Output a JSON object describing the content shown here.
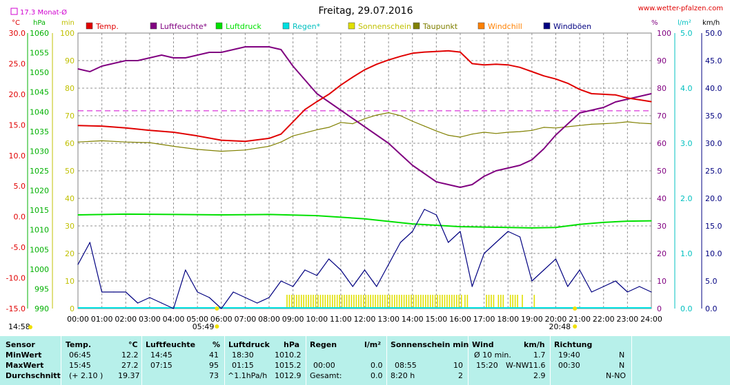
{
  "header": {
    "title": "Freitag, 29.07.2016",
    "site": "www.wetter-pfalzen.com",
    "month_avg": "17.3 Monat-Ø",
    "unit_temp": "°C",
    "unit_hpa": "hPa",
    "unit_min": "min",
    "unit_pct": "%",
    "unit_rain": "l/m²",
    "unit_kmh": "km/h"
  },
  "legend": [
    {
      "label": "Temp.",
      "color": "#e00000"
    },
    {
      "label": "Luftfeuchte*",
      "color": "#800080"
    },
    {
      "label": "Luftdruck",
      "color": "#00e000"
    },
    {
      "label": "Regen*",
      "color": "#00e0e0"
    },
    {
      "label": "Sonnenschein",
      "color": "#e0e000"
    },
    {
      "label": "Taupunkt",
      "color": "#808000"
    },
    {
      "label": "Windchill",
      "color": "#ff8000"
    },
    {
      "label": "Windböen",
      "color": "#000080"
    }
  ],
  "sun": {
    "sunrise_label": "05:49",
    "sunset_label": "20:48",
    "left_time": "14:58"
  },
  "chart_data": {
    "type": "line",
    "xlabel": "",
    "x_ticks": [
      "00:00",
      "01:00",
      "02:00",
      "03:00",
      "04:00",
      "05:00",
      "06:00",
      "07:00",
      "08:00",
      "09:00",
      "10:00",
      "11:00",
      "12:00",
      "13:00",
      "14:00",
      "15:00",
      "16:00",
      "17:00",
      "18:00",
      "19:00",
      "20:00",
      "21:00",
      "22:00",
      "23:00",
      "24:00"
    ],
    "axes": {
      "temp": {
        "ticks": [
          "30.0",
          "25.0",
          "20.0",
          "15.0",
          "10.0",
          "5.0",
          "0.0",
          "-5.0",
          "-10.0",
          "-15.0"
        ],
        "range": [
          -15,
          30
        ]
      },
      "hpa": {
        "ticks": [
          "1060",
          "1055",
          "1050",
          "1045",
          "1040",
          "1035",
          "1030",
          "1025",
          "1020",
          "1015",
          "1010",
          "1005",
          "1000",
          "995",
          "990"
        ],
        "range": [
          990,
          1060
        ]
      },
      "min": {
        "ticks": [
          "100",
          "90",
          "80",
          "70",
          "60",
          "50",
          "40",
          "30",
          "20",
          "10",
          "0"
        ],
        "range": [
          0,
          100
        ]
      },
      "pct": {
        "ticks": [
          "100",
          "90",
          "80",
          "70",
          "60",
          "50",
          "40",
          "30",
          "20",
          "10",
          "0"
        ],
        "range": [
          0,
          100
        ]
      },
      "rain": {
        "ticks": [
          "5.0",
          "4.0",
          "3.0",
          "2.0",
          "1.0",
          "0.0"
        ],
        "range": [
          0,
          5
        ]
      },
      "kmh": {
        "ticks": [
          "50.0",
          "45.0",
          "40.0",
          "35.0",
          "30.0",
          "25.0",
          "20.0",
          "15.0",
          "10.0",
          "5.0",
          "0.0"
        ],
        "range": [
          0,
          50
        ]
      }
    },
    "month_avg_temp": 17.3,
    "series": [
      {
        "name": "Temp.",
        "axis": "temp",
        "color": "#e00000",
        "x": [
          0,
          1,
          2,
          3,
          4,
          5,
          6,
          7,
          8,
          8.5,
          9,
          9.5,
          10,
          10.5,
          11,
          11.5,
          12,
          12.5,
          13,
          13.5,
          14,
          14.5,
          15,
          15.5,
          16,
          16.5,
          17,
          17.5,
          18,
          18.5,
          19,
          19.5,
          20,
          20.5,
          21,
          21.5,
          22,
          22.5,
          23,
          23.5,
          24
        ],
        "y": [
          14.9,
          14.8,
          14.5,
          14.1,
          13.8,
          13.2,
          12.5,
          12.3,
          12.8,
          13.5,
          15.5,
          17.5,
          18.8,
          20.0,
          21.5,
          22.8,
          24.0,
          24.9,
          25.6,
          26.2,
          26.7,
          26.9,
          27.0,
          27.1,
          26.9,
          25.0,
          24.8,
          24.9,
          24.8,
          24.4,
          23.7,
          23.0,
          22.5,
          21.8,
          20.8,
          20.1,
          20.0,
          19.9,
          19.4,
          19.1,
          18.8
        ]
      },
      {
        "name": "Luftfeuchte*",
        "axis": "pct",
        "color": "#800080",
        "x": [
          0,
          0.5,
          1,
          1.5,
          2,
          2.5,
          3,
          3.5,
          4,
          4.5,
          5,
          5.5,
          6,
          6.5,
          7,
          7.5,
          8,
          8.5,
          9,
          9.5,
          10,
          10.5,
          11,
          11.5,
          12,
          12.5,
          13,
          13.5,
          14,
          14.5,
          15,
          15.5,
          16,
          16.5,
          17,
          17.5,
          18,
          18.5,
          19,
          19.5,
          20,
          20.5,
          21,
          21.5,
          22,
          22.5,
          23,
          23.5,
          24
        ],
        "y": [
          87,
          86,
          88,
          89,
          90,
          90,
          91,
          92,
          91,
          91,
          92,
          93,
          93,
          94,
          95,
          95,
          95,
          94,
          88,
          83,
          78,
          75,
          72,
          69,
          66,
          63,
          60,
          56,
          52,
          49,
          46,
          45,
          44,
          45,
          48,
          50,
          51,
          52,
          54,
          58,
          63,
          67,
          71,
          72,
          73,
          75,
          76,
          77,
          78
        ]
      },
      {
        "name": "Luftdruck",
        "axis": "hpa",
        "color": "#00e000",
        "x": [
          0,
          2,
          4,
          6,
          8,
          10,
          12,
          14,
          16,
          18,
          19,
          20,
          21,
          22,
          23,
          24
        ],
        "y": [
          1013.8,
          1014.0,
          1013.9,
          1013.8,
          1013.9,
          1013.6,
          1012.8,
          1011.5,
          1010.8,
          1010.6,
          1010.5,
          1010.6,
          1011.4,
          1011.9,
          1012.2,
          1012.3
        ]
      },
      {
        "name": "Taupunkt",
        "axis": "temp",
        "color": "#808000",
        "x": [
          0,
          1,
          2,
          3,
          4,
          5,
          6,
          7,
          8,
          8.5,
          9,
          9.5,
          10,
          10.5,
          11,
          11.5,
          12,
          12.5,
          13,
          13.5,
          14,
          14.5,
          15,
          15.5,
          16,
          16.5,
          17,
          17.5,
          18,
          18.5,
          19,
          19.5,
          20,
          20.5,
          21,
          21.5,
          22,
          22.5,
          23,
          23.5,
          24
        ],
        "y": [
          12.2,
          12.4,
          12.2,
          12.1,
          11.5,
          11.0,
          10.7,
          10.9,
          11.5,
          12.2,
          13.2,
          13.7,
          14.2,
          14.6,
          15.4,
          15.2,
          16.0,
          16.6,
          17.0,
          16.5,
          15.6,
          14.8,
          14.0,
          13.3,
          13.0,
          13.5,
          13.8,
          13.6,
          13.8,
          13.9,
          14.1,
          14.6,
          14.5,
          14.7,
          14.9,
          15.1,
          15.2,
          15.3,
          15.5,
          15.3,
          15.2
        ]
      },
      {
        "name": "Windböen",
        "axis": "kmh",
        "color": "#000080",
        "x": [
          0,
          0.5,
          1,
          1.5,
          2,
          2.5,
          3,
          3.5,
          4,
          4.5,
          5,
          5.5,
          6,
          6.5,
          7,
          7.5,
          8,
          8.5,
          9,
          9.5,
          10,
          10.5,
          11,
          11.5,
          12,
          12.5,
          13,
          13.5,
          14,
          14.5,
          15,
          15.5,
          16,
          16.5,
          17,
          17.5,
          18,
          18.5,
          19,
          19.5,
          20,
          20.5,
          21,
          21.5,
          22,
          22.5,
          23,
          23.5,
          24
        ],
        "y": [
          8,
          12,
          3,
          3,
          3,
          1,
          2,
          1,
          0,
          7,
          3,
          2,
          0,
          3,
          2,
          1,
          2,
          5,
          4,
          7,
          6,
          9,
          7,
          4,
          7,
          4,
          8,
          12,
          14,
          18,
          17,
          12,
          14,
          4,
          10,
          12,
          14,
          13,
          5,
          7,
          9,
          4,
          7,
          3,
          4,
          5,
          3,
          4,
          3
        ]
      }
    ],
    "sunshine": {
      "axis": "min",
      "color": "#e0e000",
      "bars": [
        [
          8.75,
          16.1
        ],
        [
          16.2,
          16.3
        ],
        [
          17.1,
          17.5
        ],
        [
          17.6,
          17.9
        ],
        [
          18.1,
          18.5
        ],
        [
          18.6,
          18.7
        ],
        [
          19.1,
          19.15
        ]
      ]
    },
    "rain": {
      "axis": "rain",
      "color": "#00e0e0",
      "y": 0.0
    }
  },
  "stats": {
    "headers": {
      "sensor": "Sensor",
      "temp": "Temp.",
      "temp_unit": "°C",
      "hum": "Luftfeuchte",
      "hum_unit": "%",
      "press": "Luftdruck",
      "press_unit": "hPa",
      "rain": "Regen",
      "rain_unit": "l/m²",
      "sun": "Sonnenschein min",
      "wind": "Wind",
      "wind_unit": "km/h",
      "dir": "Richtung"
    },
    "rows": [
      {
        "label": "MinWert",
        "temp_t": "06:45",
        "temp_v": "12.2",
        "hum_t": "14:45",
        "hum_v": "41",
        "press_t": "18:30",
        "press_v": "1010.2",
        "rain_t": "",
        "rain_v": "",
        "sun_t": "",
        "sun_v": "",
        "wind_t": "Ø 10 min.",
        "wind_d": "",
        "wind_v": "1.7",
        "dir_t": "19:40",
        "dir_v": "N"
      },
      {
        "label": "MaxWert",
        "temp_t": "15:45",
        "temp_v": "27.2",
        "hum_t": "07:15",
        "hum_v": "95",
        "press_t": "01:15",
        "press_v": "1015.2",
        "rain_t": "00:00",
        "rain_v": "0.0",
        "sun_t": "08:55",
        "sun_v": "10",
        "wind_t": "15:20",
        "wind_d": "W-NW",
        "wind_v": "11.6",
        "dir_t": "00:30",
        "dir_v": "N"
      },
      {
        "label": "Durchschnitt",
        "temp_t": "(+ 2.10 )",
        "temp_v": "19.37",
        "hum_t": "",
        "hum_v": "73",
        "press_t": "^1.1hPa/h",
        "press_v": "1012.9",
        "rain_t": "Gesamt:",
        "rain_v": "0.0",
        "sun_t": "8:20 h",
        "sun_v": "2",
        "wind_t": "",
        "wind_d": "",
        "wind_v": "2.9",
        "dir_t": "",
        "dir_v": "N-NO"
      }
    ]
  }
}
